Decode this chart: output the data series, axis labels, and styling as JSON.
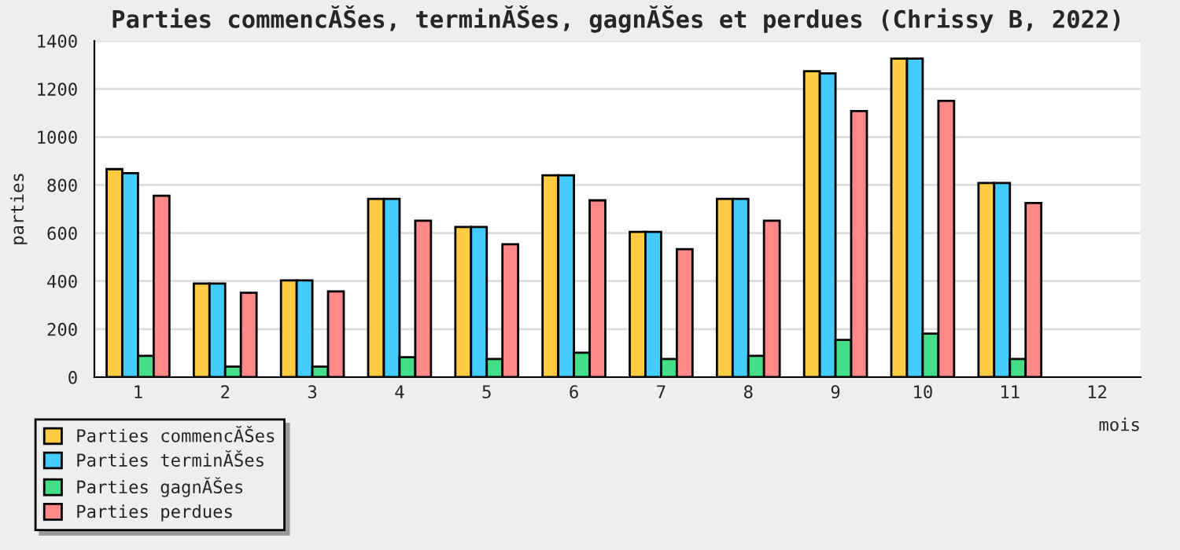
{
  "chart_data": {
    "type": "bar",
    "title": "Parties commencĂŠes, terminĂŠes, gagnĂŠes et perdues (Chrissy B, 2022)",
    "xlabel": "mois",
    "ylabel": "parties",
    "categories": [
      "1",
      "2",
      "3",
      "4",
      "5",
      "6",
      "7",
      "8",
      "9",
      "10",
      "11",
      "12"
    ],
    "series": [
      {
        "name": "Parties commencĂŠes",
        "color": "#ffcc44",
        "values": [
          866,
          390,
          403,
          742,
          625,
          840,
          605,
          742,
          1274,
          1326,
          808,
          null
        ]
      },
      {
        "name": "Parties terminĂŠes",
        "color": "#44ccff",
        "values": [
          849,
          390,
          403,
          742,
          625,
          840,
          605,
          742,
          1265,
          1326,
          808,
          null
        ]
      },
      {
        "name": "Parties gagnĂŠes",
        "color": "#44dd88",
        "values": [
          89,
          44,
          44,
          83,
          76,
          102,
          76,
          89,
          155,
          181,
          76,
          null
        ]
      },
      {
        "name": "Parties perdues",
        "color": "#ff8888",
        "values": [
          755,
          351,
          357,
          651,
          553,
          736,
          533,
          651,
          1108,
          1150,
          725,
          null
        ]
      }
    ],
    "ylim": [
      0,
      1400
    ],
    "yticks": [
      0,
      200,
      400,
      600,
      800,
      1000,
      1200,
      1400
    ],
    "grid": "y",
    "legend": "bottom left"
  }
}
